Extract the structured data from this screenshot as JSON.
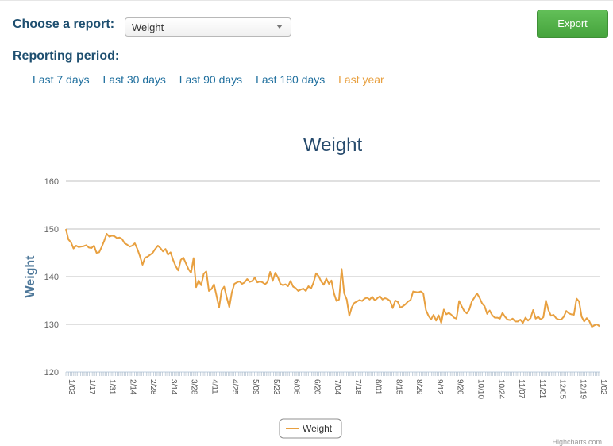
{
  "header": {
    "report_label": "Choose a report:",
    "report_value": "Weight",
    "export_label": "Export",
    "period_label": "Reporting period:",
    "period_links": [
      {
        "label": "Last 7 days",
        "active": false
      },
      {
        "label": "Last 30 days",
        "active": false
      },
      {
        "label": "Last 90 days",
        "active": false
      },
      {
        "label": "Last 180 days",
        "active": false
      },
      {
        "label": "Last year",
        "active": true
      }
    ]
  },
  "credits": "Highcharts.com",
  "chart_data": {
    "type": "line",
    "title": "Weight",
    "ylabel": "Weight",
    "xlabel": "",
    "ylim": [
      120,
      160
    ],
    "yticks": [
      120,
      130,
      140,
      150,
      160
    ],
    "grid": true,
    "legend_position": "bottom-center",
    "xtick_labels": [
      "1/03",
      "1/17",
      "1/31",
      "2/14",
      "2/28",
      "3/14",
      "3/28",
      "4/11",
      "4/25",
      "5/09",
      "5/23",
      "6/06",
      "6/20",
      "7/04",
      "7/18",
      "8/01",
      "8/15",
      "8/29",
      "9/12",
      "9/26",
      "10/10",
      "10/24",
      "11/07",
      "11/21",
      "12/05",
      "12/19",
      "1/02"
    ],
    "series": [
      {
        "name": "Weight",
        "color": "#e8a040",
        "x_labels_every_days": 1,
        "values": [
          150.0,
          147.8,
          147.2,
          145.9,
          146.5,
          146.2,
          146.3,
          146.4,
          146.6,
          146.1,
          146.0,
          146.5,
          145.0,
          145.1,
          146.2,
          147.5,
          149.0,
          148.4,
          148.6,
          148.5,
          148.1,
          148.2,
          147.9,
          147.0,
          146.7,
          146.3,
          146.5,
          147.0,
          145.8,
          144.3,
          142.5,
          144.0,
          144.2,
          144.6,
          145.0,
          145.8,
          146.5,
          146.0,
          145.3,
          145.8,
          144.6,
          145.1,
          143.5,
          142.2,
          141.3,
          143.5,
          144.0,
          142.8,
          141.6,
          140.8,
          143.9,
          137.8,
          139.2,
          138.2,
          140.6,
          141.1,
          137.0,
          137.4,
          138.4,
          136.0,
          133.5,
          137.1,
          137.9,
          135.6,
          133.6,
          136.7,
          138.5,
          138.8,
          139.0,
          138.5,
          138.8,
          139.5,
          138.9,
          139.1,
          139.8,
          138.8,
          139.0,
          138.8,
          138.4,
          138.9,
          141.0,
          139.1,
          140.8,
          139.9,
          138.5,
          138.2,
          138.4,
          138.0,
          139.1,
          137.9,
          137.6,
          137.0,
          137.3,
          137.5,
          137.0,
          138.0,
          137.5,
          138.8,
          140.7,
          140.1,
          139.0,
          138.3,
          139.6,
          138.5,
          139.2,
          136.5,
          134.9,
          135.2,
          141.6,
          136.5,
          135.2,
          131.8,
          133.6,
          134.5,
          134.8,
          135.1,
          134.9,
          135.4,
          135.6,
          135.2,
          135.8,
          135.0,
          135.5,
          135.9,
          135.2,
          135.5,
          135.3,
          134.9,
          133.4,
          135.0,
          134.7,
          133.5,
          133.8,
          134.2,
          134.8,
          135.1,
          136.9,
          136.8,
          136.7,
          136.9,
          136.5,
          133.0,
          131.8,
          131.0,
          132.0,
          130.8,
          131.9,
          130.3,
          133.1,
          132.1,
          132.4,
          132.0,
          131.4,
          131.2,
          134.9,
          133.8,
          132.8,
          132.3,
          133.1,
          134.8,
          135.6,
          136.5,
          135.6,
          134.4,
          133.8,
          132.2,
          132.9,
          131.9,
          131.4,
          131.4,
          131.2,
          132.4,
          131.6,
          131.0,
          130.9,
          131.2,
          130.6,
          130.6,
          131.0,
          130.3,
          131.4,
          130.8,
          131.3,
          133.0,
          131.2,
          131.6,
          131.0,
          131.5,
          135.0,
          133.0,
          131.8,
          132.0,
          131.3,
          131.0,
          131.0,
          131.6,
          132.8,
          132.3,
          132.1,
          132.0,
          135.4,
          134.8,
          131.6,
          130.6,
          131.3,
          130.7,
          129.5,
          129.8,
          130.0,
          129.6
        ],
        "total_days": 365
      }
    ]
  }
}
